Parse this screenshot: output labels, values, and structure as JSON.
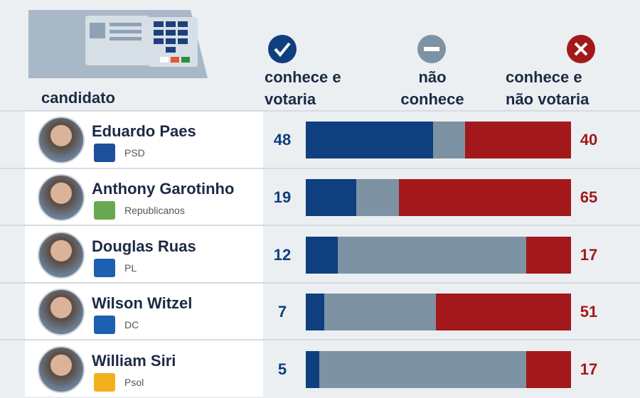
{
  "chart_data": {
    "type": "bar",
    "stacked": true,
    "orientation": "horizontal",
    "category_header": "candidato",
    "categories": [
      "Eduardo Paes",
      "Anthony Garotinho",
      "Douglas Ruas",
      "Wilson Witzel",
      "William Siri"
    ],
    "parties": [
      "PSD",
      "Republicanos",
      "PL",
      "DC",
      "Psol"
    ],
    "xlim": [
      0,
      100
    ],
    "series": [
      {
        "name": "conhece e votaria",
        "color": "#0f3f7f",
        "values": [
          48,
          19,
          12,
          7,
          5
        ],
        "labeled": true
      },
      {
        "name": "não conhece",
        "color": "#7d93a3",
        "values": [
          12,
          16,
          71,
          42,
          78
        ],
        "labeled": false
      },
      {
        "name": "conhece e não votaria",
        "color": "#a3191b",
        "values": [
          40,
          65,
          17,
          51,
          17
        ],
        "labeled": true
      }
    ]
  }
}
